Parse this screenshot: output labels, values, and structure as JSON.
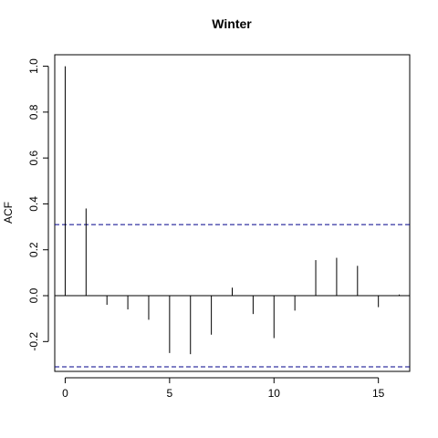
{
  "chart_data": {
    "type": "bar",
    "subtype": "acf",
    "title": "Winter",
    "xlabel": "",
    "ylabel": "ACF",
    "x": [
      0,
      1,
      2,
      3,
      4,
      5,
      6,
      7,
      8,
      9,
      10,
      11,
      12,
      13,
      14,
      15,
      16
    ],
    "values": [
      1.0,
      0.38,
      -0.04,
      -0.06,
      -0.105,
      -0.25,
      -0.255,
      -0.17,
      0.035,
      -0.08,
      -0.185,
      -0.065,
      0.155,
      0.165,
      0.13,
      -0.05,
      0.005
    ],
    "confidence_bound": 0.31,
    "xlim": [
      -0.5,
      16.5
    ],
    "ylim": [
      -0.33,
      1.05
    ],
    "xticks": [
      0,
      5,
      10,
      15
    ],
    "yticks": [
      -0.2,
      0.0,
      0.2,
      0.4,
      0.6,
      0.8,
      1.0
    ],
    "xtick_labels": [
      "0",
      "5",
      "10",
      "15"
    ],
    "ytick_labels": [
      "-0.2",
      "0.0",
      "0.2",
      "0.4",
      "0.6",
      "0.8",
      "1.0"
    ],
    "zero_line": true,
    "confidence_line_color": "#00008b",
    "bar_color": "#000000",
    "grid": false
  }
}
